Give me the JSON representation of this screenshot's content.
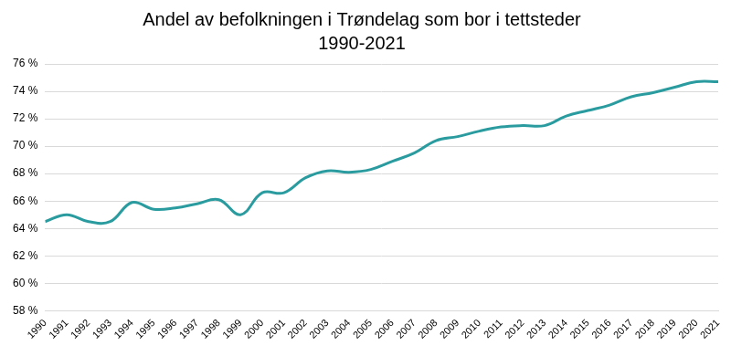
{
  "chart_data": {
    "type": "line",
    "title": "Andel av befolkningen i Trøndelag som bor i tettsteder",
    "subtitle": "1990-2021",
    "categories": [
      "1990",
      "1991",
      "1992",
      "1993",
      "1994",
      "1995",
      "1996",
      "1997",
      "1998",
      "1999",
      "2000",
      "2001",
      "2002",
      "2003",
      "2004",
      "2005",
      "2006",
      "2007",
      "2008",
      "2009",
      "2010",
      "2011",
      "2012",
      "2013",
      "2014",
      "2015",
      "2016",
      "2017",
      "2018",
      "2019",
      "2020",
      "2021"
    ],
    "values": [
      64.5,
      65.0,
      64.5,
      64.5,
      65.9,
      65.4,
      65.5,
      65.8,
      66.1,
      65.0,
      66.6,
      66.6,
      67.7,
      68.2,
      68.1,
      68.3,
      68.9,
      69.5,
      70.4,
      70.7,
      71.1,
      71.4,
      71.5,
      71.5,
      72.2,
      72.6,
      73.0,
      73.6,
      73.9,
      74.3,
      74.7,
      74.7
    ],
    "color": "#2a9ca0",
    "ylim": [
      58,
      76
    ],
    "yticks": [
      {
        "value": 58,
        "label": "58 %"
      },
      {
        "value": 60,
        "label": "60 %"
      },
      {
        "value": 62,
        "label": "62 %"
      },
      {
        "value": 64,
        "label": "64 %"
      },
      {
        "value": 66,
        "label": "66 %"
      },
      {
        "value": 68,
        "label": "68 %"
      },
      {
        "value": 70,
        "label": "70 %"
      },
      {
        "value": 72,
        "label": "72 %"
      },
      {
        "value": 74,
        "label": "74 %"
      },
      {
        "value": 76,
        "label": "76 %"
      }
    ],
    "grid": true
  }
}
